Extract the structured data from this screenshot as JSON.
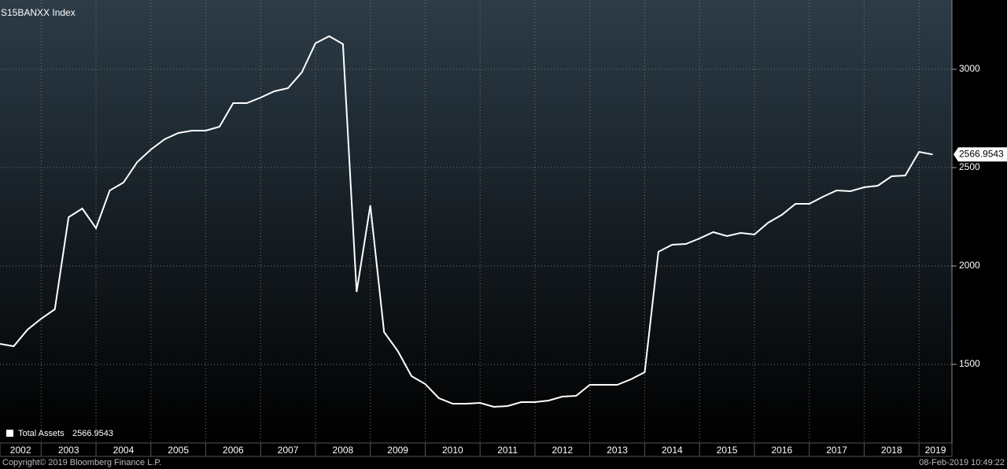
{
  "chart_data": {
    "type": "line",
    "title": "S15BANXX Index",
    "x": [
      2002.25,
      2002.5,
      2002.75,
      2003,
      2003.25,
      2003.5,
      2003.75,
      2004,
      2004.25,
      2004.5,
      2004.75,
      2005,
      2005.25,
      2005.5,
      2005.75,
      2006,
      2006.25,
      2006.5,
      2006.75,
      2007,
      2007.25,
      2007.5,
      2007.75,
      2008,
      2008.25,
      2008.5,
      2008.75,
      2009,
      2009.25,
      2009.5,
      2009.75,
      2010,
      2010.25,
      2010.5,
      2010.75,
      2011,
      2011.25,
      2011.5,
      2011.75,
      2012,
      2012.25,
      2012.5,
      2012.75,
      2013,
      2013.25,
      2013.5,
      2013.75,
      2014,
      2014.25,
      2014.5,
      2014.75,
      2015,
      2015.25,
      2015.5,
      2015.75,
      2016,
      2016.25,
      2016.5,
      2016.75,
      2017,
      2017.25,
      2017.5,
      2017.75,
      2018,
      2018.25,
      2018.5,
      2018.75,
      2019,
      2019.25
    ],
    "series": [
      {
        "name": "Total Assets",
        "color": "#ffffff",
        "values": [
          1604,
          1592,
          1676,
          1732,
          1780,
          2248,
          2292,
          2192,
          2384,
          2424,
          2528,
          2592,
          2644,
          2676,
          2688,
          2688,
          2708,
          2828,
          2828,
          2856,
          2888,
          2904,
          2984,
          3132,
          3168,
          3128,
          1868,
          2308,
          1664,
          1568,
          1440,
          1400,
          1328,
          1300,
          1300,
          1304,
          1284,
          1288,
          1308,
          1308,
          1316,
          1336,
          1340,
          1396,
          1396,
          1396,
          1424,
          1460,
          2072,
          2108,
          2112,
          2140,
          2172,
          2152,
          2168,
          2160,
          2220,
          2260,
          2316,
          2316,
          2352,
          2384,
          2380,
          2400,
          2408,
          2456,
          2460,
          2580,
          2566.9543
        ]
      }
    ],
    "xlim": [
      2002.25,
      2019.6
    ],
    "xticks": [
      2002,
      2003,
      2004,
      2005,
      2006,
      2007,
      2008,
      2009,
      2010,
      2011,
      2012,
      2013,
      2014,
      2015,
      2016,
      2017,
      2018,
      2019
    ],
    "ylim": [
      1100,
      3352
    ],
    "yticks": [
      1500,
      2000,
      2500,
      3000
    ],
    "grid": true,
    "source": "Copyright© 2019 Bloomberg Finance L.P.",
    "timestamp": "08-Feb-2019 10:49:22"
  }
}
